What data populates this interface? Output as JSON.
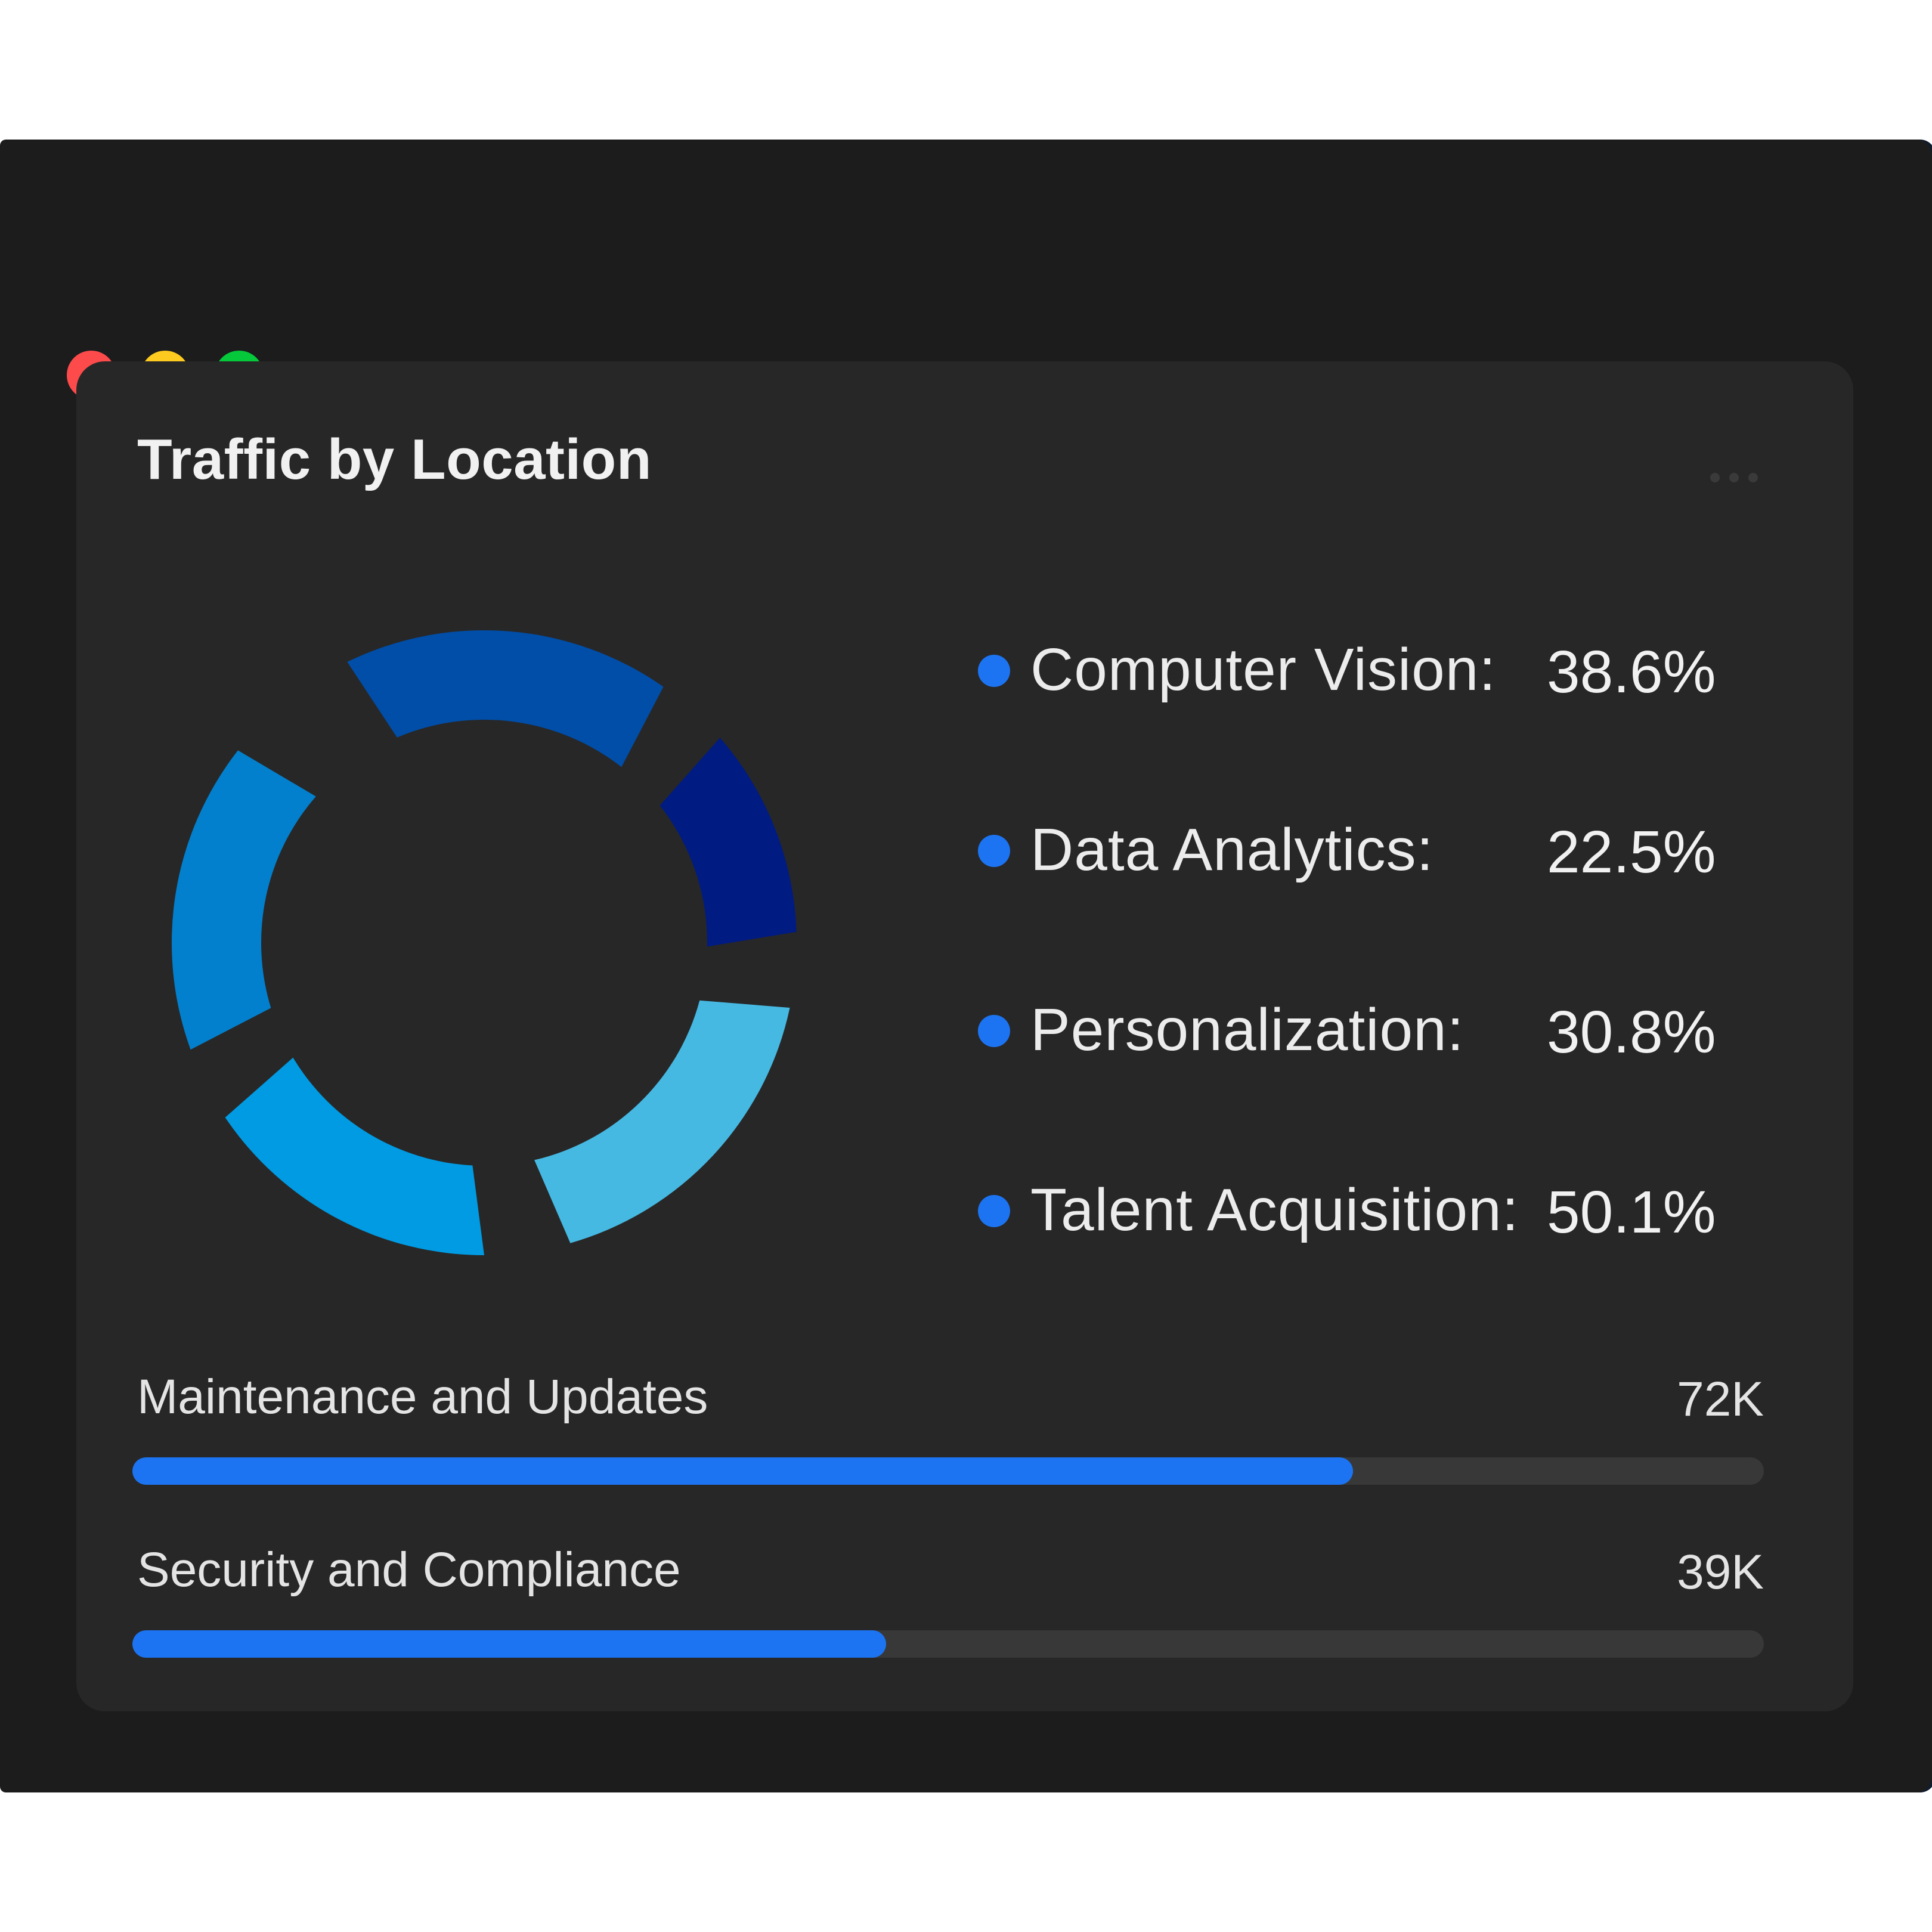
{
  "window": {
    "controls": [
      {
        "name": "close",
        "color": "#fd4b4b"
      },
      {
        "name": "minimize",
        "color": "#fdca1f"
      },
      {
        "name": "maximize",
        "color": "#05c93a"
      }
    ]
  },
  "card": {
    "title": "Traffic by Location",
    "more_icon": "more-horizontal-icon"
  },
  "chart_data": {
    "type": "pie",
    "legend_position": "right",
    "series": [
      {
        "name": "Computer Vision",
        "label": "Computer Vision:",
        "value": 38.6,
        "display": "38.6%",
        "dot_color": "#1c74f2",
        "segment_color": "#004ea8"
      },
      {
        "name": "Data Analytics",
        "label": "Data Analytics:",
        "value": 22.5,
        "display": "22.5%",
        "dot_color": "#1c74f2",
        "segment_color": "#001b82"
      },
      {
        "name": "Personalization",
        "label": "Personalization:",
        "value": 30.8,
        "display": "30.8%",
        "dot_color": "#1c74f2",
        "segment_color": "#46b9e2"
      },
      {
        "name": "Talent Acquisition",
        "label": "Talent Acquisition:",
        "value": 50.1,
        "display": "50.1%",
        "dot_color": "#1c74f2",
        "segment_color": "#009be2"
      }
    ],
    "extra_segment_color": "#0280cd"
  },
  "metrics": [
    {
      "label": "Maintenance and Updates",
      "value": "72K",
      "fraction": 0.748,
      "color": "#1c74f2"
    },
    {
      "label": "Security and Compliance",
      "value": "39K",
      "fraction": 0.462,
      "color": "#1c74f2"
    }
  ]
}
